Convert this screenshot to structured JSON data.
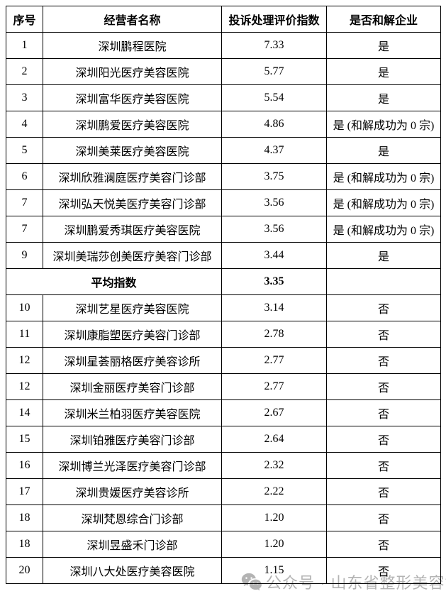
{
  "table": {
    "columns": [
      "序号",
      "经营者名称",
      "投诉处理评价指数",
      "是否和解企业"
    ],
    "rows": [
      {
        "no": "1",
        "name": "深圳鹏程医院",
        "index": "7.33",
        "settle": "是"
      },
      {
        "no": "2",
        "name": "深圳阳光医疗美容医院",
        "index": "5.77",
        "settle": "是"
      },
      {
        "no": "3",
        "name": "深圳富华医疗美容医院",
        "index": "5.54",
        "settle": "是"
      },
      {
        "no": "4",
        "name": "深圳鹏爱医疗美容医院",
        "index": "4.86",
        "settle": "是 (和解成功为 0 宗)"
      },
      {
        "no": "5",
        "name": "深圳美莱医疗美容医院",
        "index": "4.37",
        "settle": "是"
      },
      {
        "no": "6",
        "name": "深圳欣雅澜庭医疗美容门诊部",
        "index": "3.75",
        "settle": "是 (和解成功为 0 宗)"
      },
      {
        "no": "7",
        "name": "深圳弘天悦美医疗美容门诊部",
        "index": "3.56",
        "settle": "是 (和解成功为 0 宗)"
      },
      {
        "no": "7",
        "name": "深圳鹏爱秀琪医疗美容医院",
        "index": "3.56",
        "settle": "是 (和解成功为 0 宗)"
      },
      {
        "no": "9",
        "name": "深圳美瑞莎创美医疗美容门诊部",
        "index": "3.44",
        "settle": "是"
      },
      {
        "type": "average",
        "label": "平均指数",
        "index": "3.35",
        "settle": ""
      },
      {
        "no": "10",
        "name": "深圳艺星医疗美容医院",
        "index": "3.14",
        "settle": "否"
      },
      {
        "no": "11",
        "name": "深圳康脂塑医疗美容门诊部",
        "index": "2.78",
        "settle": "否"
      },
      {
        "no": "12",
        "name": "深圳星荟丽格医疗美容诊所",
        "index": "2.77",
        "settle": "否"
      },
      {
        "no": "12",
        "name": "深圳金丽医疗美容门诊部",
        "index": "2.77",
        "settle": "否"
      },
      {
        "no": "14",
        "name": "深圳米兰柏羽医疗美容医院",
        "index": "2.67",
        "settle": "否"
      },
      {
        "no": "15",
        "name": "深圳铂雅医疗美容门诊部",
        "index": "2.64",
        "settle": "否"
      },
      {
        "no": "16",
        "name": "深圳博兰光泽医疗美容门诊部",
        "index": "2.32",
        "settle": "否"
      },
      {
        "no": "17",
        "name": "深圳贵媛医疗美容诊所",
        "index": "2.22",
        "settle": "否"
      },
      {
        "no": "18",
        "name": "深圳梵恩综合门诊部",
        "index": "1.20",
        "settle": "否"
      },
      {
        "no": "18",
        "name": "深圳昱盛禾门诊部",
        "index": "1.20",
        "settle": "否"
      },
      {
        "no": "20",
        "name": "深圳八大处医疗美容医院",
        "index": "1.15",
        "settle": "否"
      }
    ]
  },
  "watermark": {
    "icon": "wechat-icon",
    "text": "公众号 · 山东省整形美容协会"
  },
  "colors": {
    "border": "#000000",
    "text": "#000000",
    "watermark": "#b3b3b3",
    "background": "#ffffff"
  }
}
